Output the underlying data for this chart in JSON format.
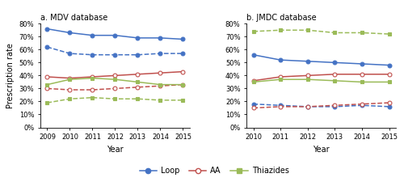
{
  "mdv": {
    "years": [
      2009,
      2010,
      2011,
      2012,
      2013,
      2014,
      2015
    ],
    "loop_hf": [
      76,
      73,
      71,
      71,
      69,
      69,
      68
    ],
    "loop_all": [
      62,
      57,
      56,
      56,
      56,
      57,
      57
    ],
    "aa_hf": [
      39,
      38,
      39,
      40,
      41,
      42,
      43
    ],
    "aa_all": [
      30,
      29,
      29,
      30,
      31,
      32,
      33
    ],
    "thiaz_hf": [
      33,
      37,
      38,
      37,
      35,
      33,
      33
    ],
    "thiaz_all": [
      19,
      22,
      23,
      22,
      22,
      21,
      21
    ]
  },
  "jmdc": {
    "years": [
      2010,
      2011,
      2012,
      2013,
      2014,
      2015
    ],
    "loop_hf": [
      56,
      52,
      51,
      50,
      49,
      48
    ],
    "loop_all": [
      18,
      17,
      16,
      16,
      17,
      16
    ],
    "aa_hf": [
      36,
      39,
      40,
      41,
      41,
      41
    ],
    "aa_all": [
      15,
      16,
      16,
      17,
      18,
      19
    ],
    "thiaz_hf": [
      35,
      37,
      37,
      36,
      35,
      35
    ],
    "thiaz_all": [
      74,
      75,
      75,
      73,
      73,
      72
    ]
  },
  "colors": {
    "loop": "#4472C4",
    "aa": "#C0504D",
    "thiaz": "#9BBB59"
  },
  "title_a": "a. MDV database",
  "title_b": "b. JMDC database",
  "ylabel": "Prescription rate",
  "xlabel": "Year",
  "ylim": [
    0,
    80
  ],
  "yticks": [
    0,
    10,
    20,
    30,
    40,
    50,
    60,
    70,
    80
  ],
  "legend_labels": [
    "Loop",
    "AA",
    "Thiazides"
  ]
}
